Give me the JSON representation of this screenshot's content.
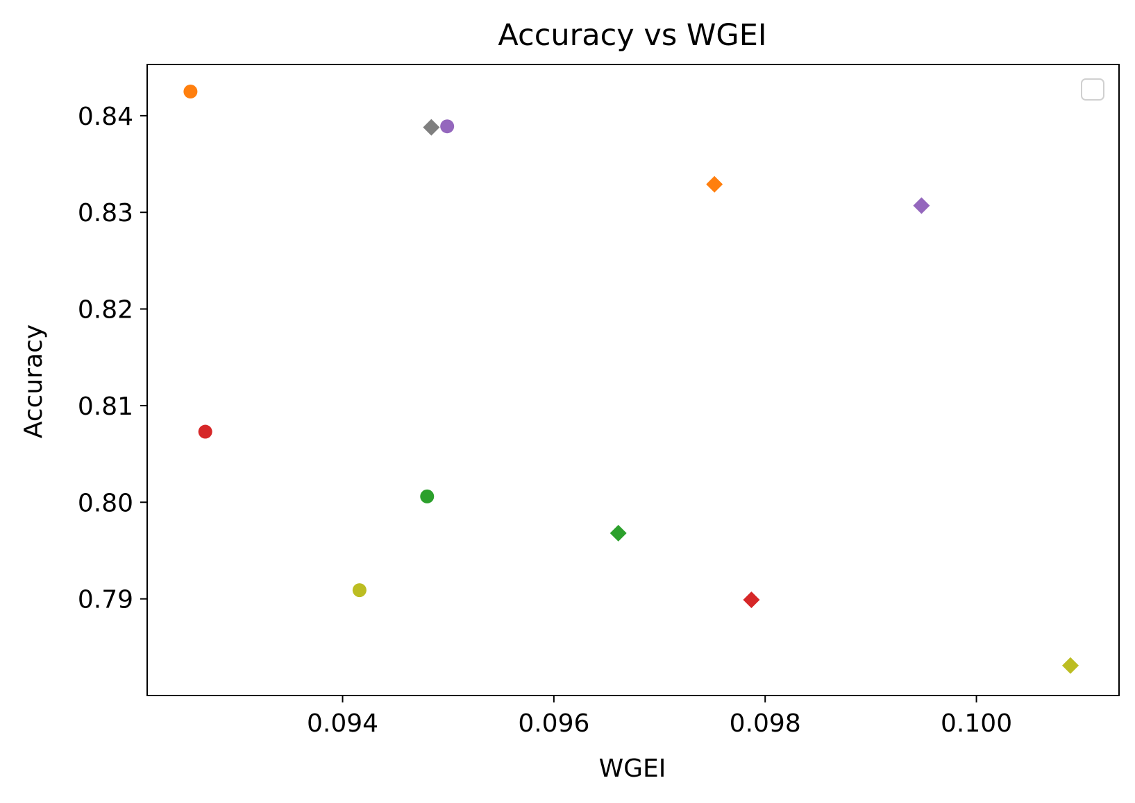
{
  "chart_data": {
    "type": "scatter",
    "title": "Accuracy vs WGEI",
    "xlabel": "WGEI",
    "ylabel": "Accuracy",
    "xlim": [
      0.09215,
      0.10135
    ],
    "ylim": [
      0.78,
      0.8453
    ],
    "x_ticks": [
      0.094,
      0.096,
      0.098,
      0.1
    ],
    "x_tick_labels": [
      "0.094",
      "0.096",
      "0.098",
      "0.100"
    ],
    "y_ticks": [
      0.79,
      0.8,
      0.81,
      0.82,
      0.83,
      0.84
    ],
    "y_tick_labels": [
      "0.79",
      "0.80",
      "0.81",
      "0.82",
      "0.83",
      "0.84"
    ],
    "grid": false,
    "legend": {
      "placement": "top-right",
      "entries": []
    },
    "points": [
      {
        "x": 0.09256,
        "y": 0.8425,
        "marker": "circle",
        "color": "#ff7f0e"
      },
      {
        "x": 0.0927,
        "y": 0.8073,
        "marker": "circle",
        "color": "#d62728"
      },
      {
        "x": 0.09416,
        "y": 0.7909,
        "marker": "circle",
        "color": "#bcbd22"
      },
      {
        "x": 0.0948,
        "y": 0.8006,
        "marker": "circle",
        "color": "#2ca02c"
      },
      {
        "x": 0.09499,
        "y": 0.8389,
        "marker": "circle",
        "color": "#9467bd"
      },
      {
        "x": 0.09484,
        "y": 0.8388,
        "marker": "diamond",
        "color": "#7f7f7f"
      },
      {
        "x": 0.09752,
        "y": 0.8329,
        "marker": "diamond",
        "color": "#ff7f0e"
      },
      {
        "x": 0.09948,
        "y": 0.8307,
        "marker": "diamond",
        "color": "#9467bd"
      },
      {
        "x": 0.09661,
        "y": 0.7968,
        "marker": "diamond",
        "color": "#2ca02c"
      },
      {
        "x": 0.09787,
        "y": 0.7899,
        "marker": "diamond",
        "color": "#d62728"
      },
      {
        "x": 0.10089,
        "y": 0.7831,
        "marker": "diamond",
        "color": "#bcbd22"
      }
    ]
  }
}
